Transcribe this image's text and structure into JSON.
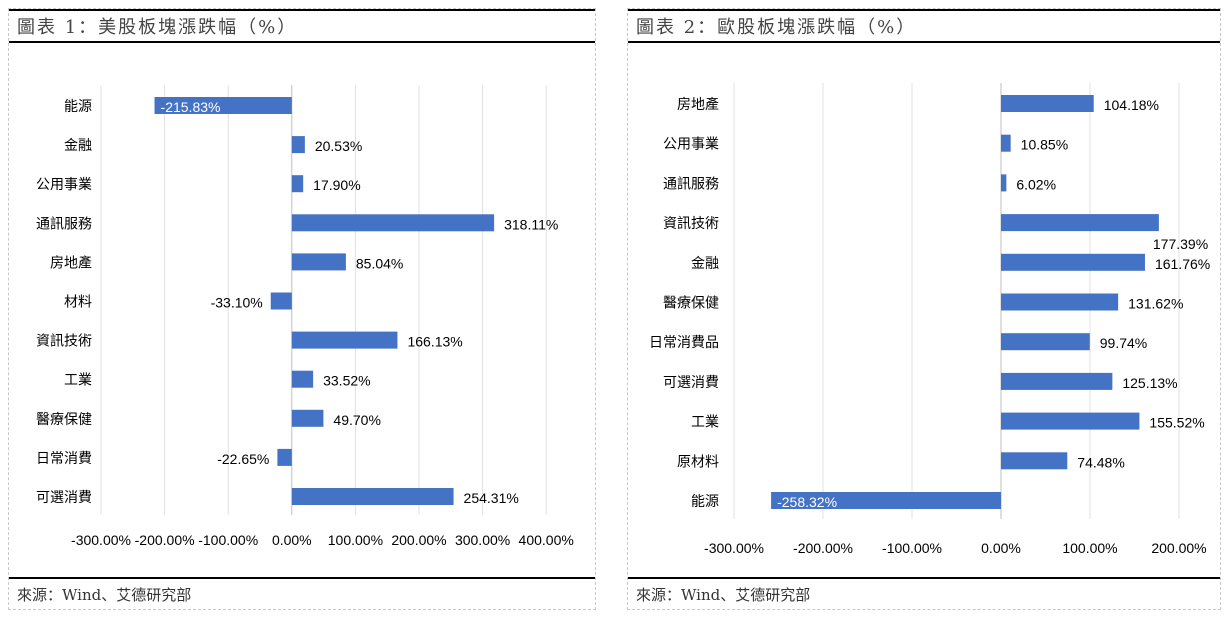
{
  "chart_data": [
    {
      "type": "bar",
      "orientation": "horizontal",
      "title": "圖表 1：美股板塊漲跌幅（%）",
      "categories": [
        "能源",
        "金融",
        "公用事業",
        "通訊服務",
        "房地產",
        "材料",
        "資訊技術",
        "工業",
        "醫療保健",
        "日常消費",
        "可選消費"
      ],
      "values": [
        -215.83,
        20.53,
        17.9,
        318.11,
        85.04,
        -33.1,
        166.13,
        33.52,
        49.7,
        -22.65,
        254.31
      ],
      "labels": [
        "-215.83%",
        "20.53%",
        "17.90%",
        "318.11%",
        "85.04%",
        "-33.10%",
        "166.13%",
        "33.52%",
        "49.70%",
        "-22.65%",
        "254.31%"
      ],
      "xlim": [
        -300,
        400
      ],
      "ticks": [
        "-300.00%",
        "-200.00%",
        "-100.00%",
        "0.00%",
        "100.00%",
        "200.00%",
        "300.00%",
        "400.00%"
      ],
      "grid": true,
      "bar_color": "#4472C4",
      "source": "來源：Wind、艾德研究部"
    },
    {
      "type": "bar",
      "orientation": "horizontal",
      "title": "圖表 2：歐股板塊漲跌幅（%）",
      "categories": [
        "房地產",
        "公用事業",
        "通訊服務",
        "資訊技術",
        "金融",
        "醫療保健",
        "日常消費品",
        "可選消費",
        "工業",
        "原材料",
        "能源"
      ],
      "values": [
        104.18,
        10.85,
        6.02,
        177.39,
        161.76,
        131.62,
        99.74,
        125.13,
        155.52,
        74.48,
        -258.32
      ],
      "labels": [
        "104.18%",
        "10.85%",
        "6.02%",
        "177.39%",
        "161.76%",
        "131.62%",
        "99.74%",
        "125.13%",
        "155.52%",
        "74.48%",
        "-258.32%"
      ],
      "xlim": [
        -300,
        200
      ],
      "ticks": [
        "-300.00%",
        "-200.00%",
        "-100.00%",
        "0.00%",
        "100.00%",
        "200.00%"
      ],
      "grid": true,
      "bar_color": "#4472C4",
      "source": "來源：Wind、艾德研究部"
    }
  ]
}
